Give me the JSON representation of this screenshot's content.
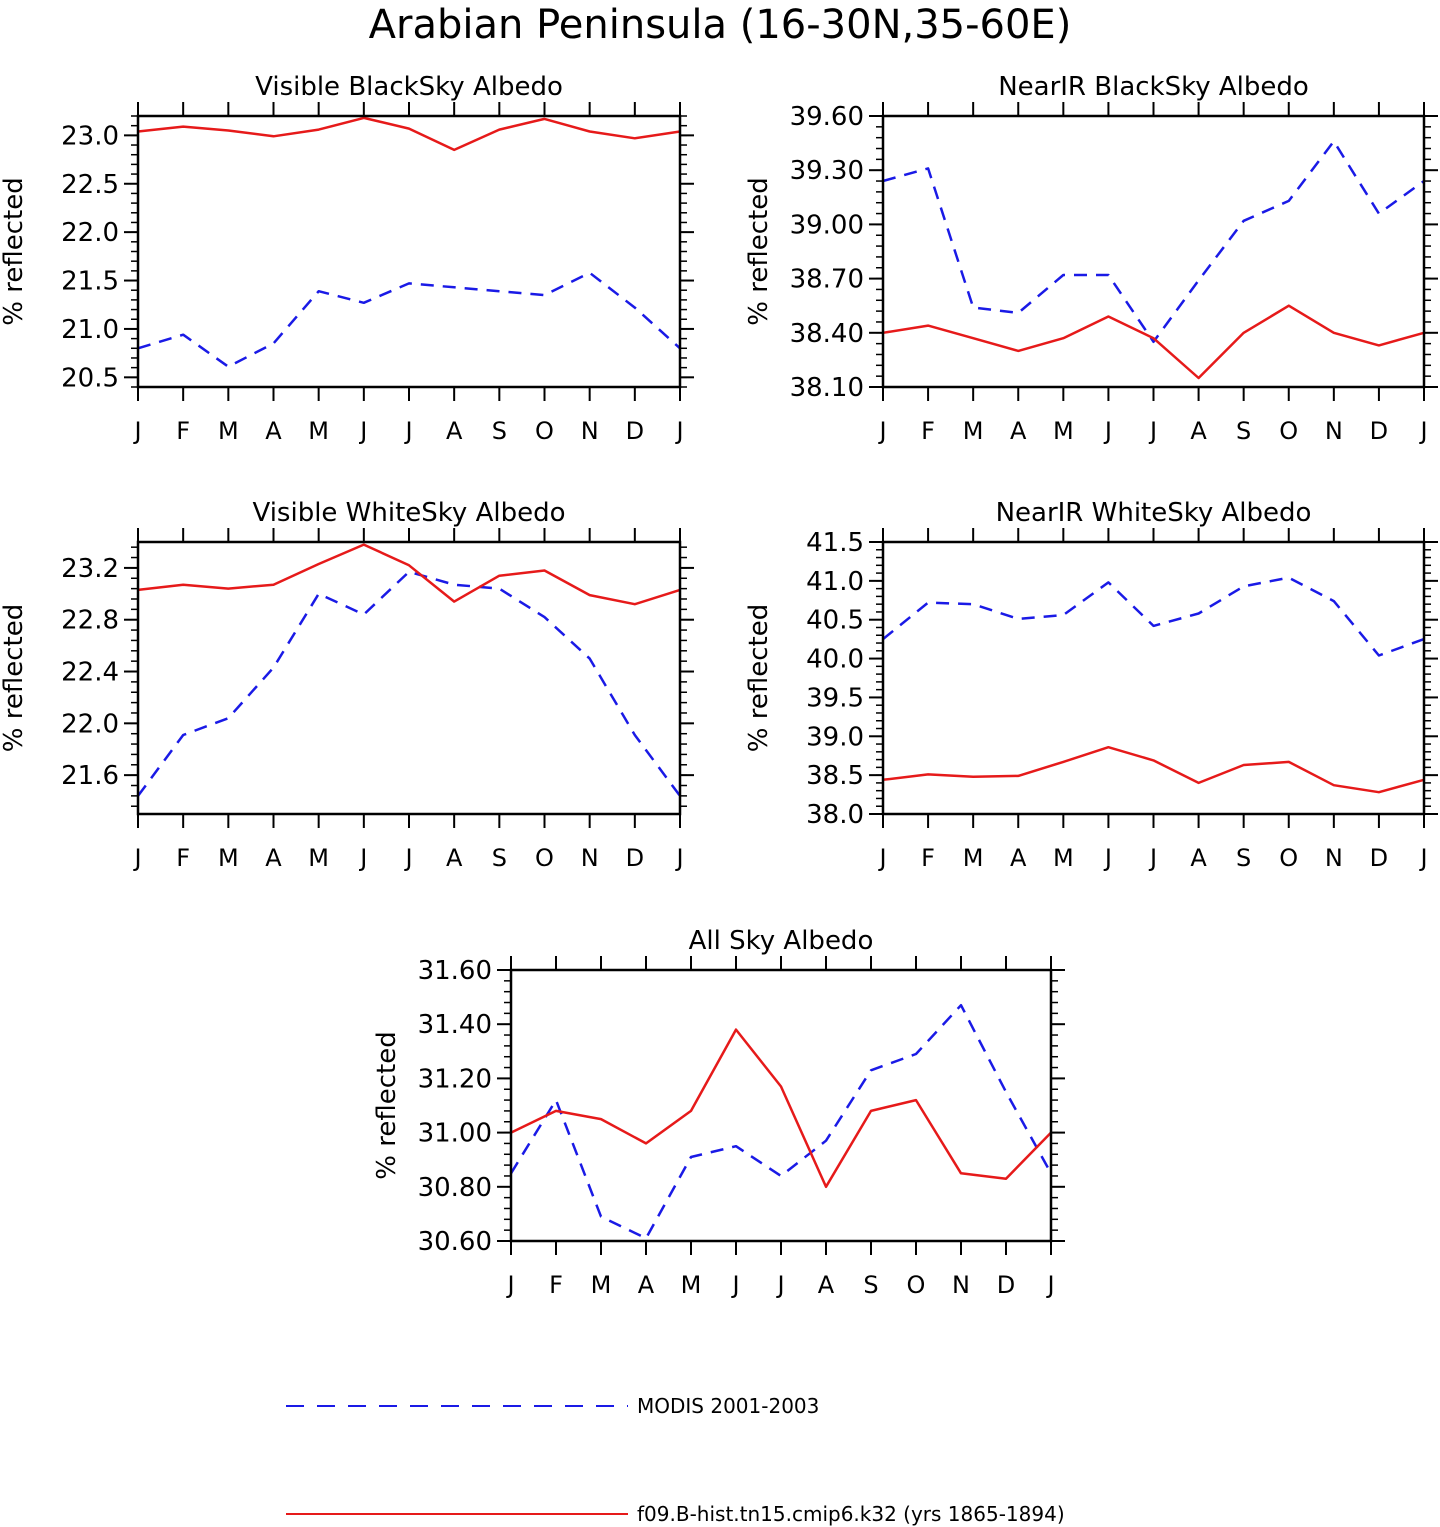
{
  "figure": {
    "title": "Arabian Peninsula (16-30N,35-60E)"
  },
  "legend": {
    "entries": [
      {
        "label": "MODIS 2001-2003",
        "color": "#1a1ae6",
        "style": "dashed"
      },
      {
        "label": "f09.B-hist.tn15.cmip6.k32 (yrs 1865-1894)",
        "color": "#e61a1a",
        "style": "solid"
      }
    ]
  },
  "chart_data": [
    {
      "type": "line",
      "title": "Visible BlackSky Albedo",
      "ylabel": "% reflected",
      "categories": [
        "J",
        "F",
        "M",
        "A",
        "M",
        "J",
        "J",
        "A",
        "S",
        "O",
        "N",
        "D",
        "J"
      ],
      "ylim": [
        20.4,
        23.2
      ],
      "yticks": [
        "20.5",
        "21.0",
        "21.5",
        "22.0",
        "22.5",
        "23.0"
      ],
      "ytick_values": [
        20.5,
        21.0,
        21.5,
        22.0,
        22.5,
        23.0
      ],
      "series": [
        {
          "name": "MODIS 2001-2003",
          "values": [
            20.8,
            20.94,
            20.61,
            20.85,
            21.39,
            21.27,
            21.47,
            21.43,
            21.39,
            21.35,
            21.58,
            21.22,
            20.8
          ]
        },
        {
          "name": "f09.B-hist.tn15.cmip6.k32 (yrs 1865-1894)",
          "values": [
            23.04,
            23.09,
            23.05,
            22.99,
            23.06,
            23.18,
            23.07,
            22.85,
            23.06,
            23.17,
            23.04,
            22.97,
            23.04
          ]
        }
      ]
    },
    {
      "type": "line",
      "title": "NearIR BlackSky Albedo",
      "ylabel": "% reflected",
      "categories": [
        "J",
        "F",
        "M",
        "A",
        "M",
        "J",
        "J",
        "A",
        "S",
        "O",
        "N",
        "D",
        "J"
      ],
      "ylim": [
        38.1,
        39.6
      ],
      "yticks": [
        "38.10",
        "38.40",
        "38.70",
        "39.00",
        "39.30",
        "39.60"
      ],
      "ytick_values": [
        38.1,
        38.4,
        38.7,
        39.0,
        39.3,
        39.6
      ],
      "series": [
        {
          "name": "MODIS 2001-2003",
          "values": [
            39.24,
            39.31,
            38.54,
            38.51,
            38.72,
            38.72,
            38.35,
            38.69,
            39.02,
            39.13,
            39.46,
            39.06,
            39.24
          ]
        },
        {
          "name": "f09.B-hist.tn15.cmip6.k32 (yrs 1865-1894)",
          "values": [
            38.4,
            38.44,
            38.37,
            38.3,
            38.37,
            38.49,
            38.37,
            38.15,
            38.4,
            38.55,
            38.4,
            38.33,
            38.4
          ]
        }
      ]
    },
    {
      "type": "line",
      "title": "Visible WhiteSky Albedo",
      "ylabel": "% reflected",
      "categories": [
        "J",
        "F",
        "M",
        "A",
        "M",
        "J",
        "J",
        "A",
        "S",
        "O",
        "N",
        "D",
        "J"
      ],
      "ylim": [
        21.3,
        23.4
      ],
      "yticks": [
        "21.6",
        "22.0",
        "22.4",
        "22.8",
        "23.2"
      ],
      "ytick_values": [
        21.6,
        22.0,
        22.4,
        22.8,
        23.2
      ],
      "series": [
        {
          "name": "MODIS 2001-2003",
          "values": [
            21.44,
            21.91,
            22.04,
            22.43,
            23.0,
            22.84,
            23.17,
            23.07,
            23.04,
            22.82,
            22.5,
            21.91,
            21.44
          ]
        },
        {
          "name": "f09.B-hist.tn15.cmip6.k32 (yrs 1865-1894)",
          "values": [
            23.03,
            23.07,
            23.04,
            23.07,
            23.23,
            23.38,
            23.22,
            22.94,
            23.14,
            23.18,
            22.99,
            22.92,
            23.03
          ]
        }
      ]
    },
    {
      "type": "line",
      "title": "NearIR WhiteSky Albedo",
      "ylabel": "% reflected",
      "categories": [
        "J",
        "F",
        "M",
        "A",
        "M",
        "J",
        "J",
        "A",
        "S",
        "O",
        "N",
        "D",
        "J"
      ],
      "ylim": [
        38.0,
        41.5
      ],
      "yticks": [
        "38.0",
        "38.5",
        "39.0",
        "39.5",
        "40.0",
        "40.5",
        "41.0",
        "41.5"
      ],
      "ytick_values": [
        38.0,
        38.5,
        39.0,
        39.5,
        40.0,
        40.5,
        41.0,
        41.5
      ],
      "series": [
        {
          "name": "MODIS 2001-2003",
          "values": [
            40.25,
            40.72,
            40.7,
            40.51,
            40.56,
            40.98,
            40.42,
            40.58,
            40.93,
            41.04,
            40.74,
            40.04,
            40.25
          ]
        },
        {
          "name": "f09.B-hist.tn15.cmip6.k32 (yrs 1865-1894)",
          "values": [
            38.44,
            38.51,
            38.48,
            38.49,
            38.67,
            38.86,
            38.69,
            38.4,
            38.63,
            38.67,
            38.37,
            38.28,
            38.44
          ]
        }
      ]
    },
    {
      "type": "line",
      "title": "All Sky Albedo",
      "ylabel": "% reflected",
      "categories": [
        "J",
        "F",
        "M",
        "A",
        "M",
        "J",
        "J",
        "A",
        "S",
        "O",
        "N",
        "D",
        "J"
      ],
      "ylim": [
        30.6,
        31.6
      ],
      "yticks": [
        "30.60",
        "30.80",
        "31.00",
        "31.20",
        "31.40",
        "31.60"
      ],
      "ytick_values": [
        30.6,
        30.8,
        31.0,
        31.2,
        31.4,
        31.6
      ],
      "series": [
        {
          "name": "MODIS 2001-2003",
          "values": [
            30.85,
            31.12,
            30.69,
            30.61,
            30.91,
            30.95,
            30.84,
            30.97,
            31.23,
            31.29,
            31.47,
            31.15,
            30.85
          ]
        },
        {
          "name": "f09.B-hist.tn15.cmip6.k32 (yrs 1865-1894)",
          "values": [
            31.0,
            31.08,
            31.05,
            30.96,
            31.08,
            31.38,
            31.17,
            30.8,
            31.08,
            31.12,
            30.85,
            30.83,
            31.0
          ]
        }
      ]
    }
  ]
}
